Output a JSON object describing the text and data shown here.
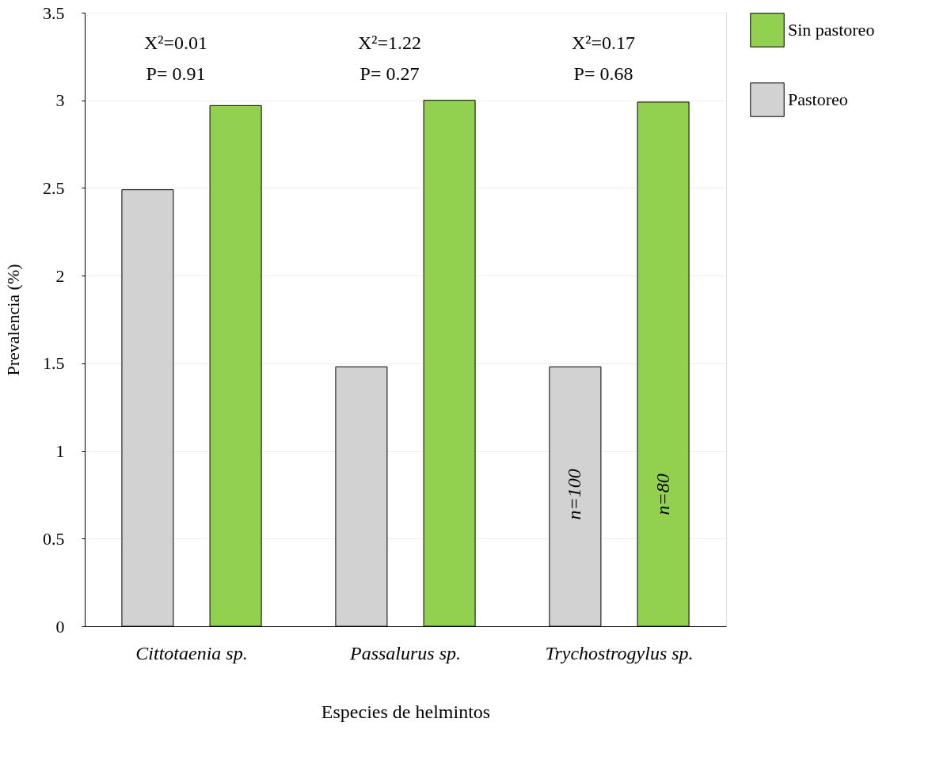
{
  "chart_data": {
    "type": "bar",
    "xlabel": "Especies de helmintos",
    "ylabel": "Prevalencia (%)",
    "categories": [
      "Cittotaenia sp.",
      "Passalurus sp.",
      "Trychostrogylus sp."
    ],
    "series": [
      {
        "name": "Pastoreo",
        "color": "#d3d2d3",
        "values": [
          2.49,
          1.48,
          1.48
        ]
      },
      {
        "name": "Sin pastoreo",
        "color": "#92d050",
        "values": [
          2.97,
          3.0,
          2.99
        ]
      }
    ],
    "ylim": [
      0,
      3.5
    ],
    "yticks": [
      0,
      0.5,
      1,
      1.5,
      2,
      2.5,
      3,
      3.5
    ],
    "grid": "y",
    "legend": "right",
    "annotations": [
      "X²=0.01",
      "P= 0.91",
      "X²=1.22",
      "P= 0.27",
      "X²=0.17",
      "P= 0.68",
      "n=100",
      "n=80"
    ]
  }
}
